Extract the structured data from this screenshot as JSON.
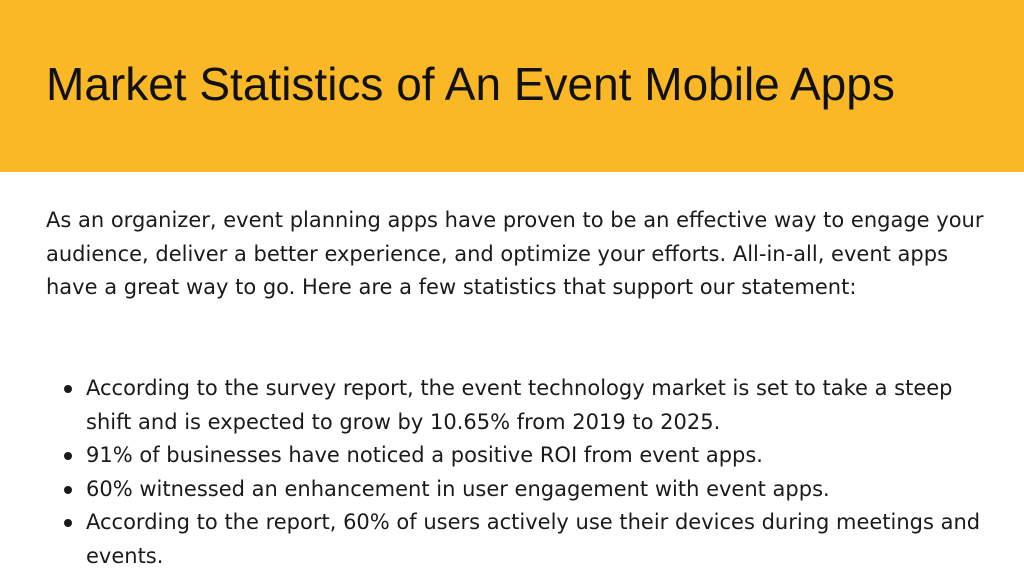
{
  "header": {
    "title": "Market Statistics of An Event Mobile Apps",
    "background_color": "#fbb826"
  },
  "intro": {
    "text": "As an organizer, event planning apps have proven to be an effective way to engage your audience, deliver a better experience, and optimize your efforts. All-in-all, event apps have a great way to go. Here are a few statistics that support our statement:"
  },
  "bullets": [
    {
      "text": "According to the survey report, the event technology market is set to take a steep shift and is expected to grow by 10.65% from 2019 to 2025."
    },
    {
      "text": "91% of businesses have noticed a positive ROI from event apps."
    },
    {
      "text": "60% witnessed an enhancement in user engagement with event apps."
    },
    {
      "text": "According to the report, 60% of users actively use their devices during meetings and events."
    }
  ]
}
